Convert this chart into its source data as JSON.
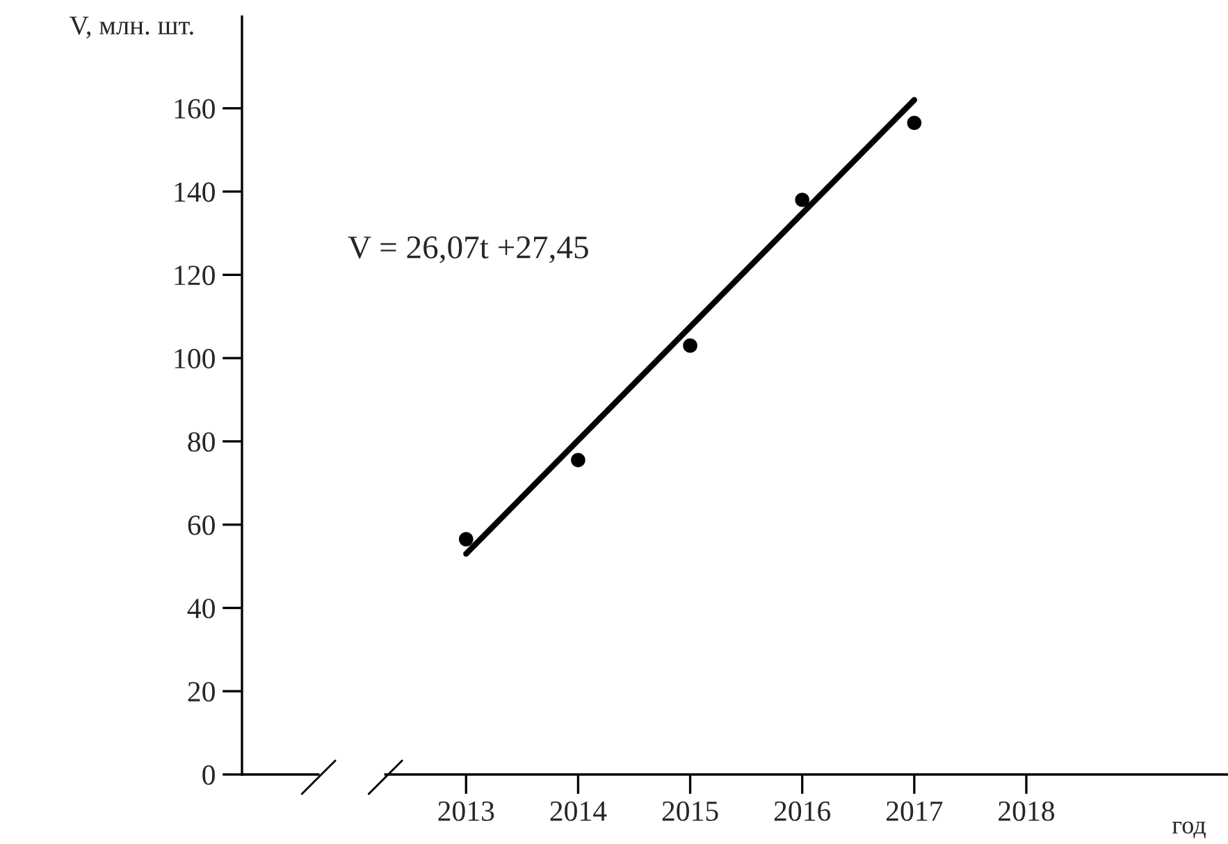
{
  "chart_data": {
    "type": "scatter",
    "xlabel": "год",
    "ylabel": "V, млн. шт.",
    "annotations": [
      "V = 26,07t +27,45"
    ],
    "series": [
      {
        "color": "#000000",
        "x": [
          2013,
          2014,
          2015,
          2016,
          2017
        ],
        "values": [
          56.5,
          75.5,
          103,
          138,
          156.5
        ]
      },
      {
        "type": "line",
        "color": "#000000",
        "x": [
          2013,
          2017
        ],
        "values": [
          53,
          162
        ]
      }
    ],
    "xlim": [
      2011,
      2019.8
    ],
    "xticks": [
      2013,
      2014,
      2015,
      2016,
      2017,
      2018
    ],
    "ylim": [
      0,
      182
    ],
    "yticks": [
      0,
      20,
      40,
      60,
      80,
      100,
      120,
      140,
      160
    ],
    "grid": false,
    "legend": false
  }
}
